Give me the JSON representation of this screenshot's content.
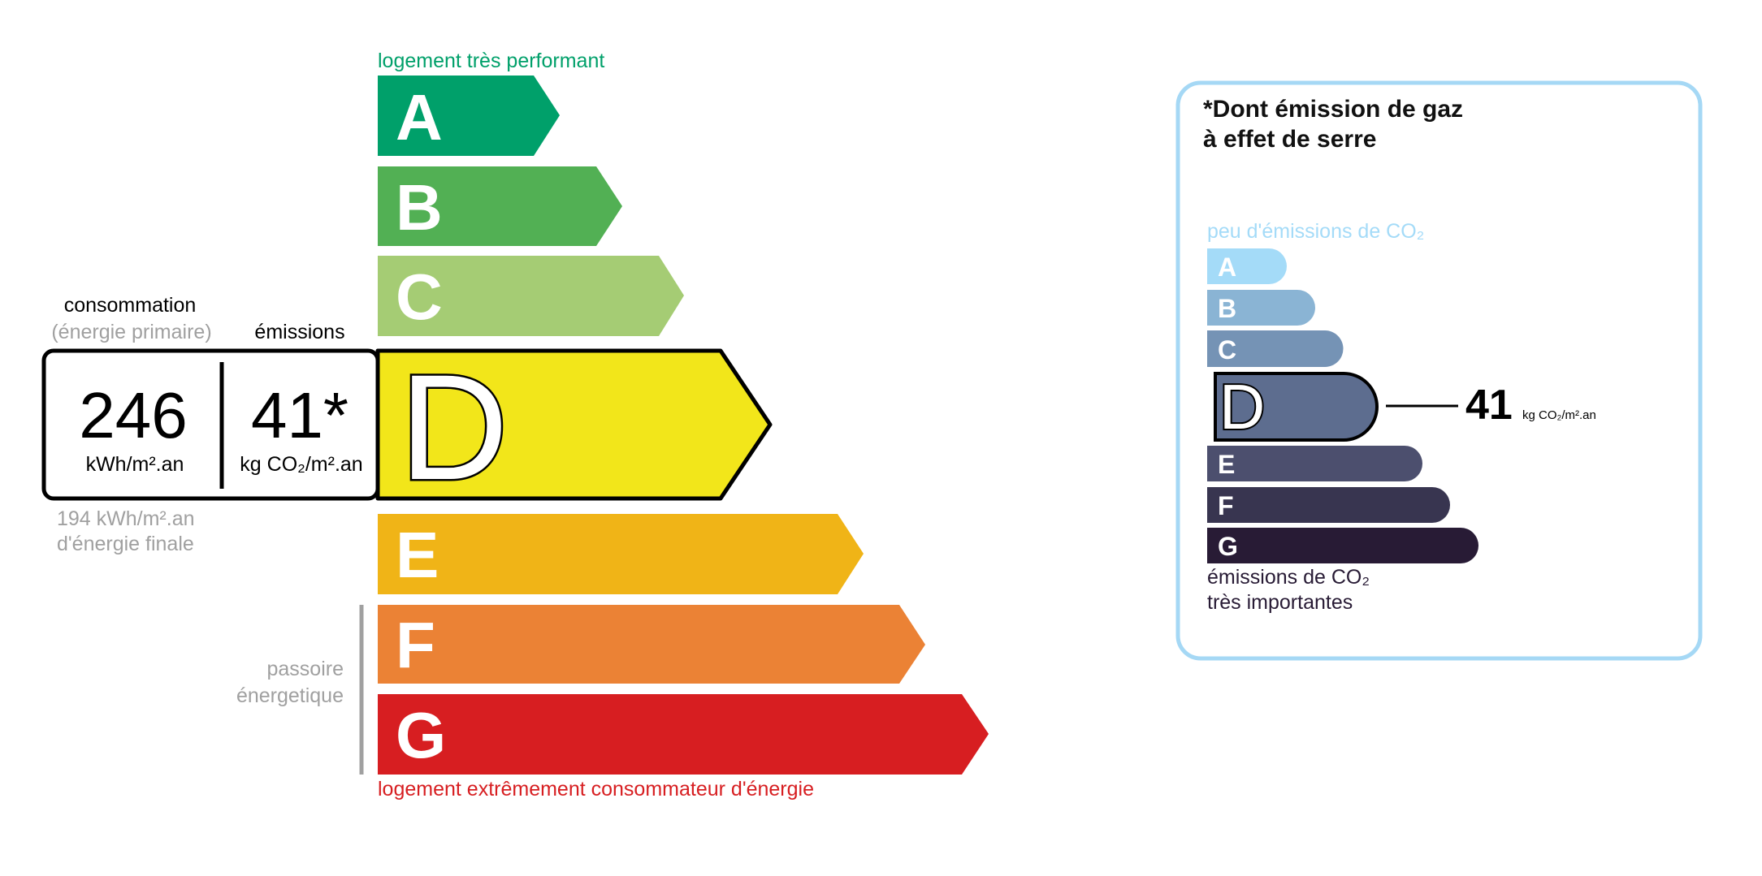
{
  "energy": {
    "top_label": "logement très performant",
    "bottom_label": "logement extrêmement consommateur d'énergie",
    "classes": [
      {
        "letter": "A",
        "color": "#00a06a"
      },
      {
        "letter": "B",
        "color": "#52b054"
      },
      {
        "letter": "C",
        "color": "#a5cc74"
      },
      {
        "letter": "D",
        "color": "#f2e61a"
      },
      {
        "letter": "E",
        "color": "#f0b417"
      },
      {
        "letter": "F",
        "color": "#eb8235"
      },
      {
        "letter": "G",
        "color": "#d71e21"
      }
    ],
    "current_class": "D",
    "consumption_label": "consommation",
    "consumption_sublabel": "(énergie primaire)",
    "emissions_label": "émissions",
    "consumption_value": "246",
    "consumption_unit": "kWh/m².an",
    "emissions_value": "41*",
    "emissions_unit": "kg CO₂/m².an",
    "final_energy_value": "194 kWh/m².an",
    "final_energy_label": "d'énergie finale",
    "passoire_line1": "passoire",
    "passoire_line2": "énergetique"
  },
  "ges": {
    "title_line1": "*Dont émission de gaz",
    "title_line2": "à effet de serre",
    "top_label": "peu d'émissions de CO₂",
    "bottom_label_line1": "émissions de CO₂",
    "bottom_label_line2": "très importantes",
    "classes": [
      {
        "letter": "A",
        "color": "#a4dbf8"
      },
      {
        "letter": "B",
        "color": "#8ab4d4"
      },
      {
        "letter": "C",
        "color": "#7593b5"
      },
      {
        "letter": "D",
        "color": "#5d6d8f"
      },
      {
        "letter": "E",
        "color": "#4c4f6e"
      },
      {
        "letter": "F",
        "color": "#383550"
      },
      {
        "letter": "G",
        "color": "#281b35"
      }
    ],
    "current_class": "D",
    "value": "41",
    "unit": "kg CO₂/m².an",
    "border_color": "#a5d8f5"
  }
}
